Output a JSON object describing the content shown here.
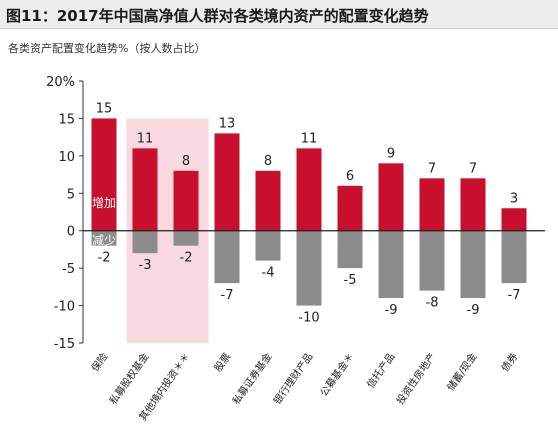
{
  "figure_title": "图11：2017年中国高净值人群对各类境内资产的配置变化趋势",
  "chart_data": {
    "type": "bar",
    "title": "各类资产配置变化趋势%（按人数占比）",
    "categories": [
      "保险",
      "私募股权基金",
      "其他境内投资＊＊",
      "股票",
      "私募证券基金",
      "银行理财产品",
      "公募基金＊",
      "信托产品",
      "投资性房地产",
      "储蓄/现金",
      "债券"
    ],
    "series": [
      {
        "name": "增加",
        "values": [
          15,
          11,
          8,
          13,
          8,
          11,
          6,
          9,
          7,
          7,
          3
        ],
        "color": "#c8102e"
      },
      {
        "name": "减少",
        "values": [
          -2,
          -3,
          -2,
          -7,
          -4,
          -10,
          -5,
          -9,
          -8,
          -9,
          -7
        ],
        "color": "#8c8c8c"
      }
    ],
    "ylim": [
      -15,
      20
    ],
    "yticks": [
      20,
      15,
      10,
      5,
      0,
      -5,
      -10,
      -15
    ],
    "ytick_labels": [
      "20%",
      "15",
      "10",
      "5",
      "0",
      "-5",
      "-10",
      "-15"
    ],
    "highlight_categories": [
      1,
      2
    ],
    "highlight_color": "#f9d9e0"
  }
}
